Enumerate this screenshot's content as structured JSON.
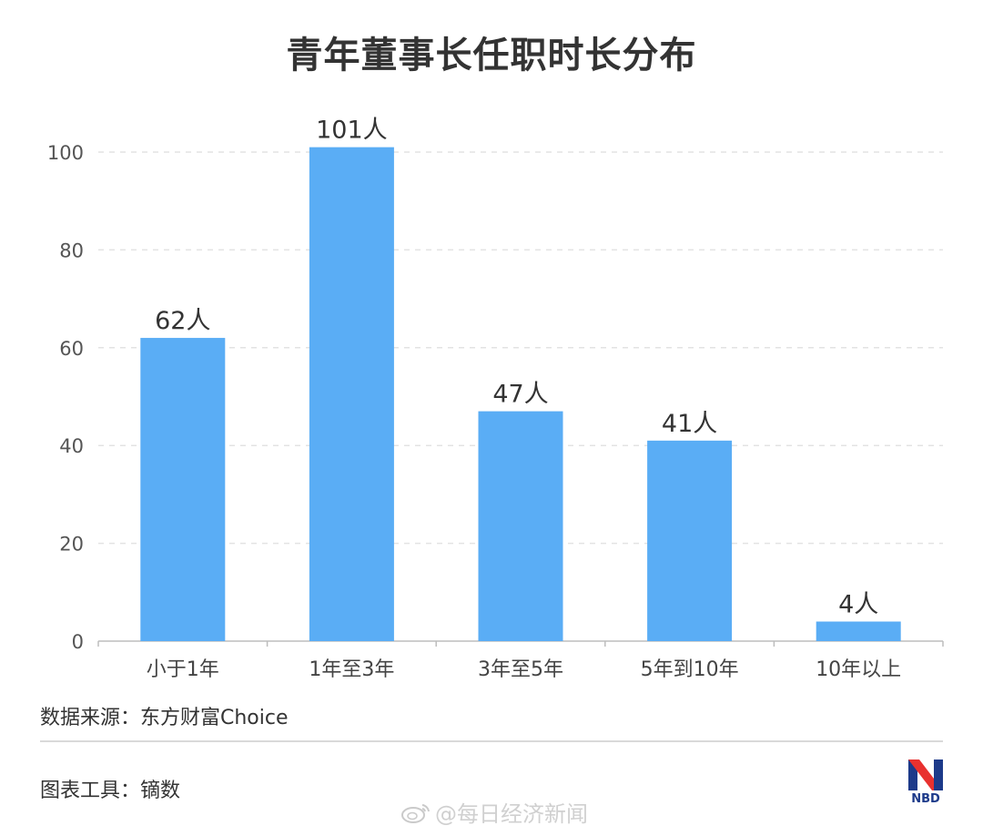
{
  "title": "青年董事长任职时长分布",
  "chart_data": {
    "type": "bar",
    "categories": [
      "小于1年",
      "1年至3年",
      "3年至5年",
      "5年到10年",
      "10年以上"
    ],
    "values": [
      62,
      101,
      47,
      41,
      4
    ],
    "data_labels": [
      "62人",
      "101人",
      "47人",
      "41人",
      "4人"
    ],
    "y_ticks": [
      "0",
      "20",
      "40",
      "60",
      "80",
      "100"
    ],
    "ylim": [
      0,
      100
    ],
    "grid": true,
    "bar_color": "#5aadf5"
  },
  "footer": {
    "source": "数据来源：东方财富Choice",
    "tool": "图表工具：镝数"
  },
  "watermark": {
    "text": "@每日经济新闻",
    "icon": "weibo-icon"
  },
  "logo": {
    "text": "NBD",
    "icon": "nbd-logo-icon",
    "colors": [
      "#e8312f",
      "#1d3a8a"
    ]
  }
}
